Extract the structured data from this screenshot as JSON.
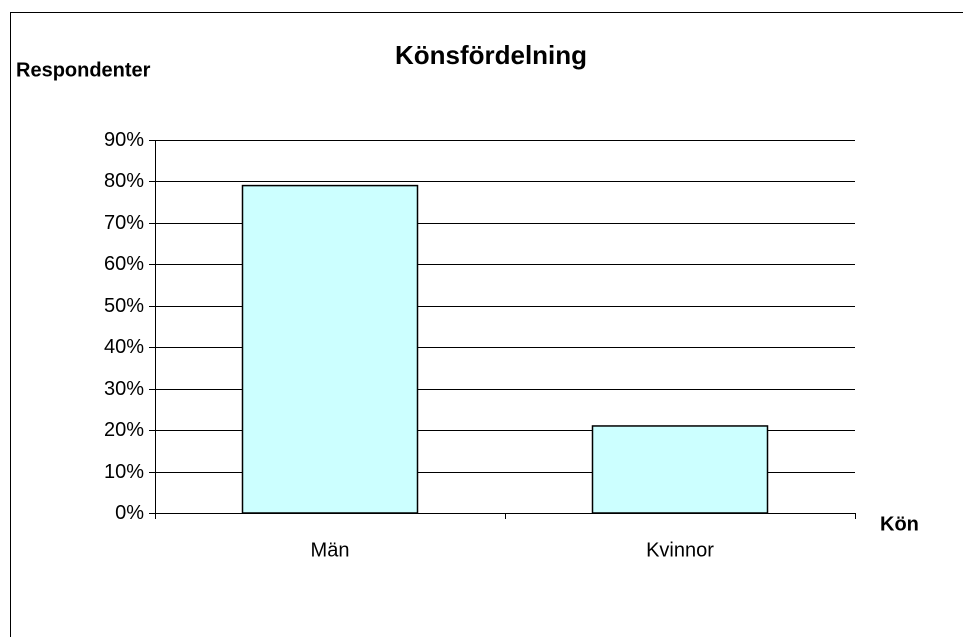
{
  "chart_data": {
    "type": "bar",
    "title": "Könsfördelning",
    "y_label": "Respondenter",
    "x_label": "Kön",
    "categories": [
      "Män",
      "Kvinnor"
    ],
    "values": [
      79,
      21
    ],
    "color": "#ccffff",
    "ylim": [
      0,
      90
    ],
    "yticks": [
      {
        "value": 0,
        "label": "0%"
      },
      {
        "value": 10,
        "label": "10%"
      },
      {
        "value": 20,
        "label": "20%"
      },
      {
        "value": 30,
        "label": "30%"
      },
      {
        "value": 40,
        "label": "40%"
      },
      {
        "value": 50,
        "label": "50%"
      },
      {
        "value": 60,
        "label": "60%"
      },
      {
        "value": 70,
        "label": "70%"
      },
      {
        "value": 80,
        "label": "80%"
      },
      {
        "value": 90,
        "label": "90%"
      }
    ],
    "grid": true
  }
}
